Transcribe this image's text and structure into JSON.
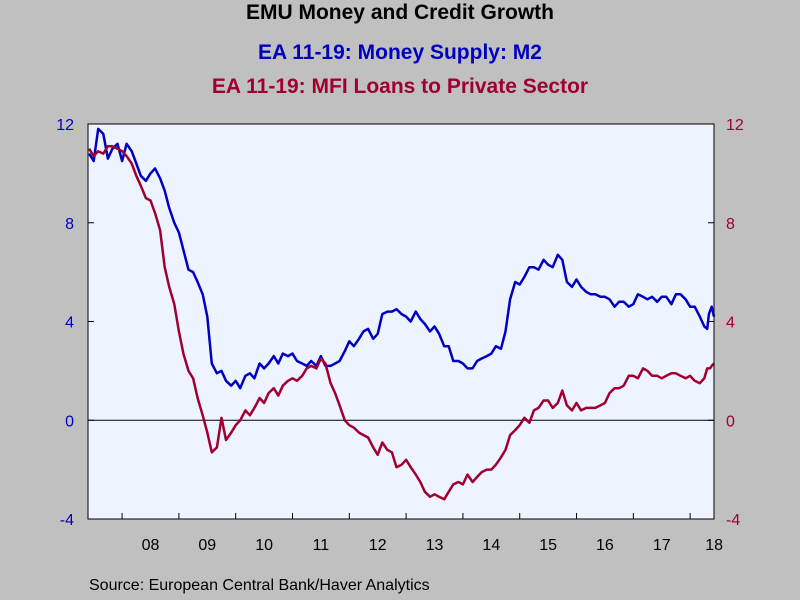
{
  "title": "EMU Money and Credit Growth",
  "source": "Source:  European Central Bank/Haver Analytics",
  "colors": {
    "plot_background": "#eef4ff",
    "page_background": "#c0c0c0",
    "m2": "#0000c0",
    "loans": "#a00030"
  },
  "chart_data": {
    "type": "line",
    "x_unit": "year (decimal)",
    "xlim": [
      2007.4,
      2018.42
    ],
    "ylim": [
      -4,
      12
    ],
    "left_axis": {
      "ticks": [
        "12",
        "8",
        "4",
        "0",
        "-4"
      ],
      "color": "#0000c0"
    },
    "right_axis": {
      "ticks": [
        "12",
        "8",
        "4",
        "0",
        "-4"
      ],
      "color": "#a00030"
    },
    "x_tick_labels": [
      "08",
      "09",
      "10",
      "11",
      "12",
      "13",
      "14",
      "15",
      "16",
      "17",
      "18"
    ],
    "zero_line": true,
    "grid": false,
    "series": [
      {
        "name": "EA 11-19: Money Supply: M2",
        "color": "#0000c0",
        "points": [
          [
            2007.42,
            10.8
          ],
          [
            2007.5,
            10.5
          ],
          [
            2007.58,
            11.8
          ],
          [
            2007.67,
            11.6
          ],
          [
            2007.75,
            10.6
          ],
          [
            2007.83,
            11.0
          ],
          [
            2007.92,
            11.2
          ],
          [
            2008.0,
            10.5
          ],
          [
            2008.08,
            11.2
          ],
          [
            2008.17,
            10.9
          ],
          [
            2008.25,
            10.4
          ],
          [
            2008.33,
            9.9
          ],
          [
            2008.42,
            9.7
          ],
          [
            2008.5,
            10.0
          ],
          [
            2008.58,
            10.2
          ],
          [
            2008.67,
            9.8
          ],
          [
            2008.75,
            9.3
          ],
          [
            2008.83,
            8.6
          ],
          [
            2008.92,
            8.0
          ],
          [
            2009.0,
            7.6
          ],
          [
            2009.08,
            6.9
          ],
          [
            2009.17,
            6.1
          ],
          [
            2009.25,
            6.0
          ],
          [
            2009.33,
            5.6
          ],
          [
            2009.42,
            5.1
          ],
          [
            2009.5,
            4.2
          ],
          [
            2009.58,
            2.3
          ],
          [
            2009.67,
            1.9
          ],
          [
            2009.75,
            2.0
          ],
          [
            2009.83,
            1.6
          ],
          [
            2009.92,
            1.4
          ],
          [
            2010.0,
            1.6
          ],
          [
            2010.08,
            1.3
          ],
          [
            2010.17,
            1.8
          ],
          [
            2010.25,
            1.9
          ],
          [
            2010.33,
            1.7
          ],
          [
            2010.42,
            2.3
          ],
          [
            2010.5,
            2.1
          ],
          [
            2010.58,
            2.3
          ],
          [
            2010.67,
            2.6
          ],
          [
            2010.75,
            2.3
          ],
          [
            2010.83,
            2.7
          ],
          [
            2010.92,
            2.6
          ],
          [
            2011.0,
            2.7
          ],
          [
            2011.08,
            2.4
          ],
          [
            2011.17,
            2.3
          ],
          [
            2011.25,
            2.2
          ],
          [
            2011.33,
            2.4
          ],
          [
            2011.42,
            2.2
          ],
          [
            2011.5,
            2.6
          ],
          [
            2011.58,
            2.2
          ],
          [
            2011.67,
            2.2
          ],
          [
            2011.75,
            2.3
          ],
          [
            2011.83,
            2.4
          ],
          [
            2011.92,
            2.8
          ],
          [
            2012.0,
            3.2
          ],
          [
            2012.08,
            3.0
          ],
          [
            2012.17,
            3.3
          ],
          [
            2012.25,
            3.6
          ],
          [
            2012.33,
            3.7
          ],
          [
            2012.42,
            3.3
          ],
          [
            2012.5,
            3.5
          ],
          [
            2012.58,
            4.3
          ],
          [
            2012.67,
            4.4
          ],
          [
            2012.75,
            4.4
          ],
          [
            2012.83,
            4.5
          ],
          [
            2012.92,
            4.3
          ],
          [
            2013.0,
            4.2
          ],
          [
            2013.08,
            4.0
          ],
          [
            2013.17,
            4.4
          ],
          [
            2013.25,
            4.1
          ],
          [
            2013.33,
            3.9
          ],
          [
            2013.42,
            3.6
          ],
          [
            2013.5,
            3.8
          ],
          [
            2013.58,
            3.5
          ],
          [
            2013.67,
            3.0
          ],
          [
            2013.75,
            3.0
          ],
          [
            2013.83,
            2.4
          ],
          [
            2013.92,
            2.4
          ],
          [
            2014.0,
            2.3
          ],
          [
            2014.08,
            2.1
          ],
          [
            2014.17,
            2.1
          ],
          [
            2014.25,
            2.4
          ],
          [
            2014.33,
            2.5
          ],
          [
            2014.42,
            2.6
          ],
          [
            2014.5,
            2.7
          ],
          [
            2014.58,
            3.0
          ],
          [
            2014.67,
            2.9
          ],
          [
            2014.75,
            3.6
          ],
          [
            2014.83,
            4.9
          ],
          [
            2014.92,
            5.6
          ],
          [
            2015.0,
            5.5
          ],
          [
            2015.08,
            5.8
          ],
          [
            2015.17,
            6.2
          ],
          [
            2015.25,
            6.2
          ],
          [
            2015.33,
            6.1
          ],
          [
            2015.42,
            6.5
          ],
          [
            2015.5,
            6.3
          ],
          [
            2015.58,
            6.2
          ],
          [
            2015.67,
            6.7
          ],
          [
            2015.75,
            6.5
          ],
          [
            2015.83,
            5.6
          ],
          [
            2015.92,
            5.4
          ],
          [
            2016.0,
            5.7
          ],
          [
            2016.08,
            5.4
          ],
          [
            2016.17,
            5.2
          ],
          [
            2016.25,
            5.1
          ],
          [
            2016.33,
            5.1
          ],
          [
            2016.42,
            5.0
          ],
          [
            2016.5,
            5.0
          ],
          [
            2016.58,
            4.9
          ],
          [
            2016.67,
            4.6
          ],
          [
            2016.75,
            4.8
          ],
          [
            2016.83,
            4.8
          ],
          [
            2016.92,
            4.6
          ],
          [
            2017.0,
            4.7
          ],
          [
            2017.08,
            5.1
          ],
          [
            2017.17,
            5.0
          ],
          [
            2017.25,
            4.9
          ],
          [
            2017.33,
            5.0
          ],
          [
            2017.42,
            4.8
          ],
          [
            2017.5,
            5.0
          ],
          [
            2017.58,
            5.0
          ],
          [
            2017.67,
            4.7
          ],
          [
            2017.75,
            5.1
          ],
          [
            2017.83,
            5.1
          ],
          [
            2017.92,
            4.9
          ],
          [
            2018.0,
            4.6
          ],
          [
            2018.08,
            4.6
          ],
          [
            2018.17,
            4.2
          ],
          [
            2018.25,
            3.8
          ],
          [
            2018.3,
            3.7
          ],
          [
            2018.33,
            4.3
          ],
          [
            2018.38,
            4.6
          ],
          [
            2018.42,
            4.2
          ]
        ]
      },
      {
        "name": "EA 11-19: MFI Loans to Private Sector",
        "color": "#a00030",
        "points": [
          [
            2007.42,
            11.0
          ],
          [
            2007.5,
            10.7
          ],
          [
            2007.58,
            10.9
          ],
          [
            2007.67,
            10.8
          ],
          [
            2007.75,
            11.1
          ],
          [
            2007.83,
            11.1
          ],
          [
            2007.92,
            11.0
          ],
          [
            2008.0,
            10.9
          ],
          [
            2008.08,
            10.7
          ],
          [
            2008.17,
            10.4
          ],
          [
            2008.25,
            9.9
          ],
          [
            2008.33,
            9.5
          ],
          [
            2008.42,
            9.0
          ],
          [
            2008.5,
            8.9
          ],
          [
            2008.58,
            8.4
          ],
          [
            2008.67,
            7.7
          ],
          [
            2008.75,
            6.2
          ],
          [
            2008.83,
            5.4
          ],
          [
            2008.92,
            4.7
          ],
          [
            2009.0,
            3.6
          ],
          [
            2009.08,
            2.7
          ],
          [
            2009.17,
            2.0
          ],
          [
            2009.25,
            1.7
          ],
          [
            2009.33,
            0.9
          ],
          [
            2009.42,
            0.2
          ],
          [
            2009.5,
            -0.5
          ],
          [
            2009.58,
            -1.3
          ],
          [
            2009.67,
            -1.1
          ],
          [
            2009.75,
            0.1
          ],
          [
            2009.83,
            -0.8
          ],
          [
            2009.92,
            -0.5
          ],
          [
            2010.0,
            -0.2
          ],
          [
            2010.08,
            0.0
          ],
          [
            2010.17,
            0.4
          ],
          [
            2010.25,
            0.2
          ],
          [
            2010.33,
            0.5
          ],
          [
            2010.42,
            0.9
          ],
          [
            2010.5,
            0.7
          ],
          [
            2010.58,
            1.1
          ],
          [
            2010.67,
            1.3
          ],
          [
            2010.75,
            1.0
          ],
          [
            2010.83,
            1.4
          ],
          [
            2010.92,
            1.6
          ],
          [
            2011.0,
            1.7
          ],
          [
            2011.08,
            1.6
          ],
          [
            2011.17,
            1.8
          ],
          [
            2011.25,
            2.1
          ],
          [
            2011.33,
            2.2
          ],
          [
            2011.42,
            2.1
          ],
          [
            2011.5,
            2.5
          ],
          [
            2011.58,
            2.3
          ],
          [
            2011.67,
            1.5
          ],
          [
            2011.75,
            1.1
          ],
          [
            2011.83,
            0.6
          ],
          [
            2011.92,
            0.0
          ],
          [
            2012.0,
            -0.2
          ],
          [
            2012.08,
            -0.3
          ],
          [
            2012.17,
            -0.5
          ],
          [
            2012.25,
            -0.6
          ],
          [
            2012.33,
            -0.7
          ],
          [
            2012.42,
            -1.1
          ],
          [
            2012.5,
            -1.4
          ],
          [
            2012.58,
            -0.9
          ],
          [
            2012.67,
            -1.2
          ],
          [
            2012.75,
            -1.3
          ],
          [
            2012.83,
            -1.9
          ],
          [
            2012.92,
            -1.8
          ],
          [
            2013.0,
            -1.6
          ],
          [
            2013.08,
            -1.9
          ],
          [
            2013.17,
            -2.2
          ],
          [
            2013.25,
            -2.5
          ],
          [
            2013.33,
            -2.9
          ],
          [
            2013.42,
            -3.1
          ],
          [
            2013.5,
            -3.0
          ],
          [
            2013.58,
            -3.1
          ],
          [
            2013.67,
            -3.2
          ],
          [
            2013.75,
            -2.9
          ],
          [
            2013.83,
            -2.6
          ],
          [
            2013.92,
            -2.5
          ],
          [
            2014.0,
            -2.6
          ],
          [
            2014.08,
            -2.2
          ],
          [
            2014.17,
            -2.5
          ],
          [
            2014.25,
            -2.3
          ],
          [
            2014.33,
            -2.1
          ],
          [
            2014.42,
            -2.0
          ],
          [
            2014.5,
            -2.0
          ],
          [
            2014.58,
            -1.8
          ],
          [
            2014.67,
            -1.5
          ],
          [
            2014.75,
            -1.2
          ],
          [
            2014.83,
            -0.6
          ],
          [
            2014.92,
            -0.4
          ],
          [
            2015.0,
            -0.2
          ],
          [
            2015.08,
            0.1
          ],
          [
            2015.17,
            -0.1
          ],
          [
            2015.25,
            0.4
          ],
          [
            2015.33,
            0.5
          ],
          [
            2015.42,
            0.8
          ],
          [
            2015.5,
            0.8
          ],
          [
            2015.58,
            0.5
          ],
          [
            2015.67,
            0.7
          ],
          [
            2015.75,
            1.2
          ],
          [
            2015.83,
            0.6
          ],
          [
            2015.92,
            0.4
          ],
          [
            2016.0,
            0.7
          ],
          [
            2016.08,
            0.4
          ],
          [
            2016.17,
            0.5
          ],
          [
            2016.25,
            0.5
          ],
          [
            2016.33,
            0.5
          ],
          [
            2016.42,
            0.6
          ],
          [
            2016.5,
            0.7
          ],
          [
            2016.58,
            1.1
          ],
          [
            2016.67,
            1.3
          ],
          [
            2016.75,
            1.3
          ],
          [
            2016.83,
            1.4
          ],
          [
            2016.92,
            1.8
          ],
          [
            2017.0,
            1.8
          ],
          [
            2017.08,
            1.7
          ],
          [
            2017.17,
            2.1
          ],
          [
            2017.25,
            2.0
          ],
          [
            2017.33,
            1.8
          ],
          [
            2017.42,
            1.8
          ],
          [
            2017.5,
            1.7
          ],
          [
            2017.58,
            1.8
          ],
          [
            2017.67,
            1.9
          ],
          [
            2017.75,
            1.9
          ],
          [
            2017.83,
            1.8
          ],
          [
            2017.92,
            1.7
          ],
          [
            2018.0,
            1.8
          ],
          [
            2018.08,
            1.6
          ],
          [
            2018.17,
            1.5
          ],
          [
            2018.25,
            1.7
          ],
          [
            2018.3,
            2.1
          ],
          [
            2018.35,
            2.1
          ],
          [
            2018.38,
            2.2
          ],
          [
            2018.42,
            2.3
          ]
        ]
      }
    ]
  }
}
